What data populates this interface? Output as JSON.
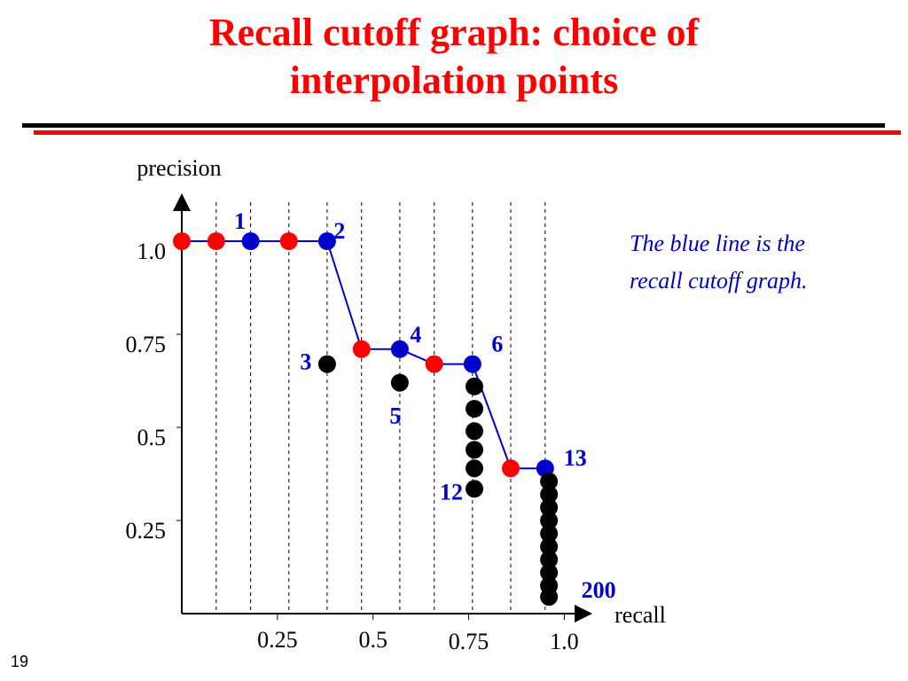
{
  "slide": {
    "title_line1": "Recall cutoff graph: choice of",
    "title_line2": "interpolation points",
    "note": "The blue line is the recall cutoff graph.",
    "slide_number": "19"
  },
  "chart_data": {
    "type": "scatter",
    "xlabel": "recall",
    "ylabel": "precision",
    "x_ticks": [
      {
        "value": 0.25,
        "label": "0.25"
      },
      {
        "value": 0.5,
        "label": "0.5"
      },
      {
        "value": 0.75,
        "label": "0.75"
      },
      {
        "value": 1.0,
        "label": "1.0"
      }
    ],
    "y_ticks": [
      {
        "value": 1.0,
        "label": "1.0"
      },
      {
        "value": 0.75,
        "label": "0.75"
      },
      {
        "value": 0.5,
        "label": "0.5"
      },
      {
        "value": 0.25,
        "label": "0.25"
      }
    ],
    "xlim": [
      0,
      1.0
    ],
    "ylim": [
      0,
      1.04
    ],
    "recall_cutoffs": [
      0.09,
      0.18,
      0.28,
      0.38,
      0.47,
      0.57,
      0.66,
      0.76,
      0.86,
      0.95
    ],
    "cutoff_graph": {
      "color": "#0000cc",
      "points": [
        [
          0,
          1.0
        ],
        [
          0.09,
          1.0
        ],
        [
          0.18,
          1.0
        ],
        [
          0.28,
          1.0
        ],
        [
          0.38,
          1.0
        ],
        [
          0.47,
          0.71
        ],
        [
          0.57,
          0.71
        ],
        [
          0.66,
          0.67
        ],
        [
          0.76,
          0.67
        ],
        [
          0.86,
          0.39
        ],
        [
          0.95,
          0.39
        ]
      ]
    },
    "series": [
      {
        "kind": "interpolated",
        "color": "#ff0000",
        "points": [
          [
            0,
            1.0
          ],
          [
            0.09,
            1.0
          ],
          [
            0.28,
            1.0
          ],
          [
            0.47,
            0.71
          ],
          [
            0.66,
            0.67
          ],
          [
            0.86,
            0.39
          ]
        ]
      },
      {
        "kind": "relevant-retrieved",
        "color": "#0000cc",
        "points": [
          [
            0.18,
            1.0
          ],
          [
            0.38,
            1.0
          ],
          [
            0.57,
            0.71
          ],
          [
            0.76,
            0.67
          ],
          [
            0.95,
            0.39
          ]
        ]
      },
      {
        "kind": "non-relevant",
        "color": "#000000",
        "points": [
          [
            0.38,
            0.67
          ],
          [
            0.57,
            0.62
          ],
          [
            0.765,
            0.61
          ],
          [
            0.765,
            0.55
          ],
          [
            0.765,
            0.49
          ],
          [
            0.765,
            0.44
          ],
          [
            0.765,
            0.39
          ],
          [
            0.765,
            0.335
          ],
          [
            0.96,
            0.355
          ],
          [
            0.96,
            0.32
          ],
          [
            0.96,
            0.285
          ],
          [
            0.96,
            0.25
          ],
          [
            0.96,
            0.215
          ],
          [
            0.96,
            0.18
          ],
          [
            0.96,
            0.145
          ],
          [
            0.96,
            0.11
          ],
          [
            0.96,
            0.075
          ],
          [
            0.96,
            0.045
          ]
        ]
      }
    ],
    "point_labels": [
      {
        "text": "1",
        "at": [
          0.18,
          1.0
        ]
      },
      {
        "text": "2",
        "at": [
          0.38,
          1.0
        ]
      },
      {
        "text": "3",
        "at": [
          0.38,
          0.67
        ]
      },
      {
        "text": "4",
        "at": [
          0.57,
          0.71
        ]
      },
      {
        "text": "5",
        "at": [
          0.57,
          0.62
        ]
      },
      {
        "text": "6",
        "at": [
          0.76,
          0.67
        ]
      },
      {
        "text": "12",
        "at": [
          0.765,
          0.335
        ]
      },
      {
        "text": "13",
        "at": [
          0.95,
          0.39
        ]
      },
      {
        "text": "200",
        "at": [
          0.96,
          0.045
        ]
      }
    ]
  }
}
